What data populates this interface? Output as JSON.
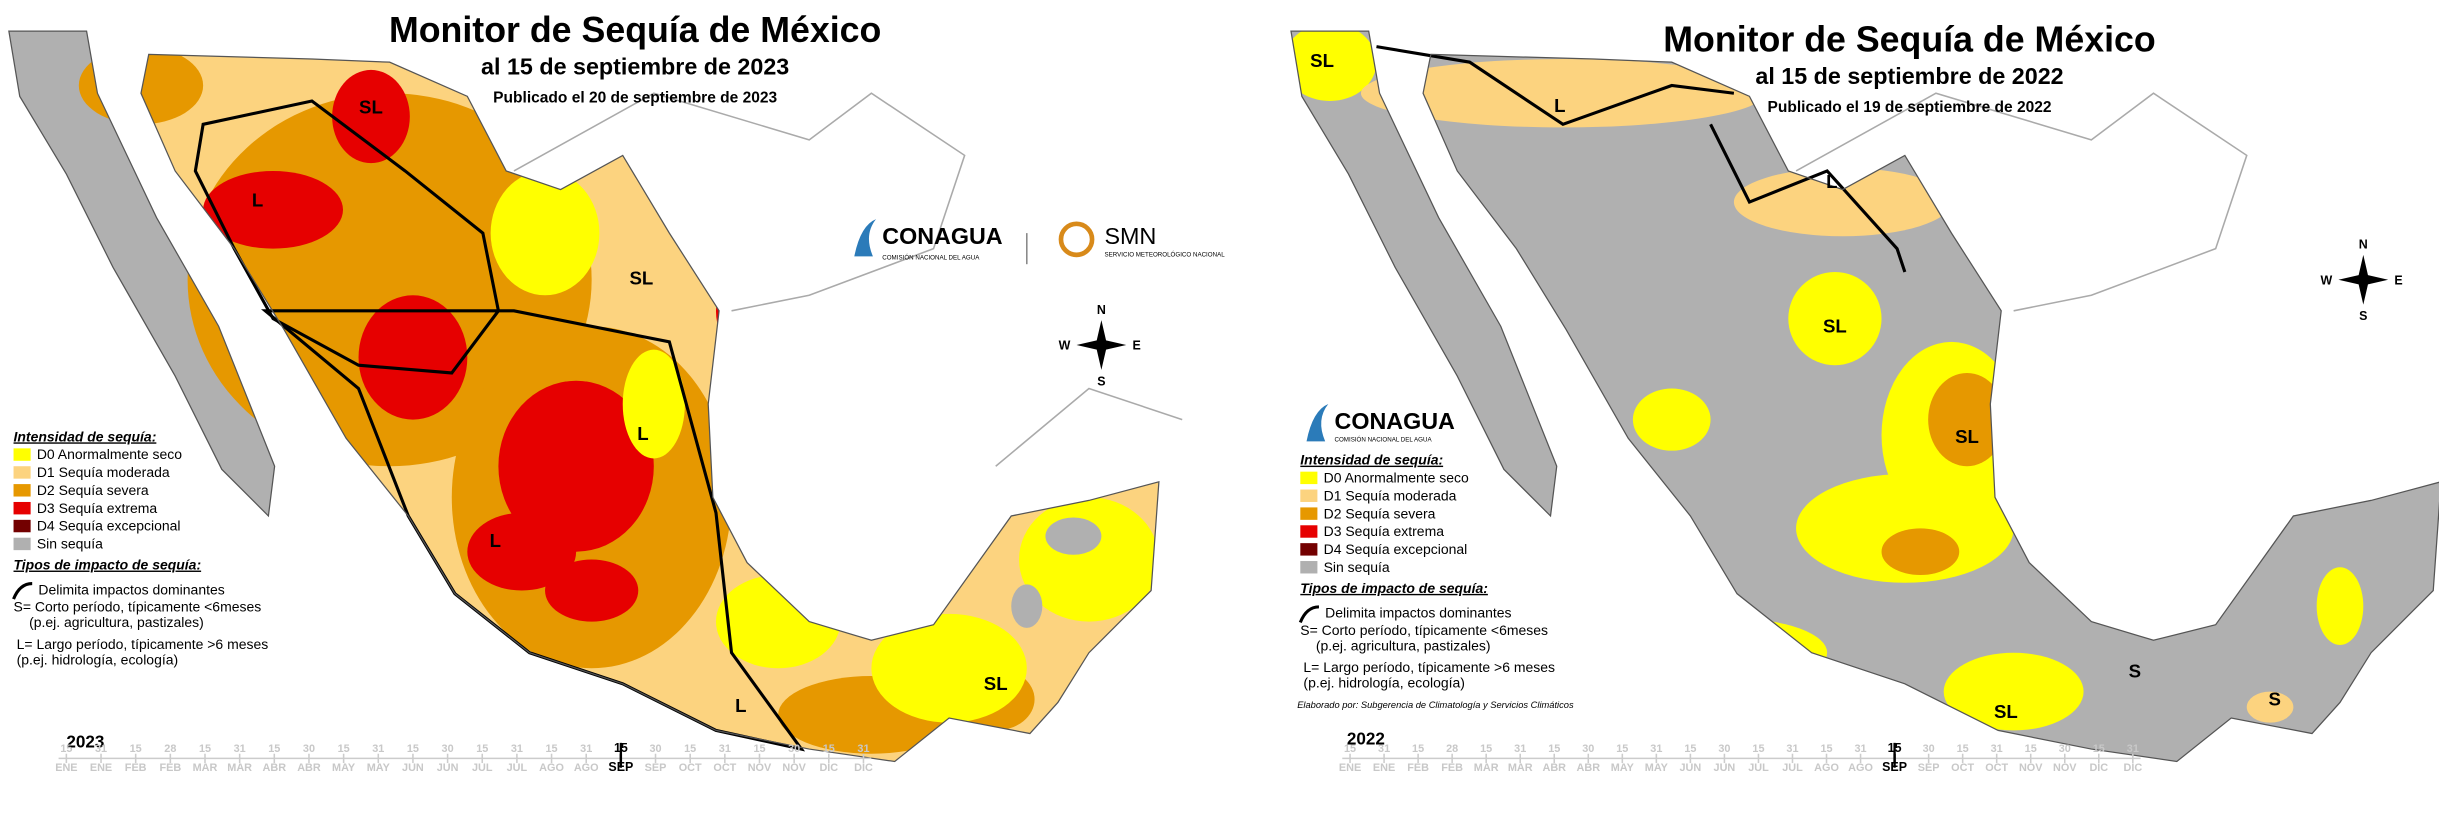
{
  "panels": [
    {
      "title": "Monitor de Sequía de México",
      "subtitle": "al 15 de septiembre de 2023",
      "published": "Publicado el 20 de septiembre de 2023",
      "logos": [
        "CONAGUA",
        "COMISIÓN NACIONAL DEL AGUA",
        "SMN",
        "SERVICIO METEOROLÓGICO NACIONAL"
      ],
      "compass": [
        "N",
        "E",
        "S",
        "W"
      ],
      "legend": {
        "intensity_title": "Intensidad de sequía:",
        "items": [
          {
            "label": "D0 Anormalmente seco",
            "color": "#ffff00"
          },
          {
            "label": "D1 Sequía moderada",
            "color": "#fcd37f"
          },
          {
            "label": "D2 Sequía severa",
            "color": "#e69800"
          },
          {
            "label": "D3 Sequía extrema",
            "color": "#e60000"
          },
          {
            "label": "D4 Sequía excepcional",
            "color": "#730000"
          },
          {
            "label": "Sin sequía",
            "color": "#b0b0b0"
          }
        ],
        "impact_title": "Tipos de impacto de sequía:",
        "impact_items": [
          "Delimita impactos dominantes",
          "S= Corto período, típicamente <6meses",
          "(p.ej. agricultura, pastizales)",
          "L= Largo período, típicamente >6 meses",
          "(p.ej. hidrología, ecología)"
        ]
      },
      "map_labels": [
        "SL",
        "L",
        "SL",
        "L",
        "L",
        "L",
        "SL"
      ],
      "year": "2023",
      "timeline": [
        {
          "day": "15",
          "month": "ENE"
        },
        {
          "day": "31",
          "month": "ENE"
        },
        {
          "day": "15",
          "month": "FEB"
        },
        {
          "day": "28",
          "month": "FEB"
        },
        {
          "day": "15",
          "month": "MAR"
        },
        {
          "day": "31",
          "month": "MAR"
        },
        {
          "day": "15",
          "month": "ABR"
        },
        {
          "day": "30",
          "month": "ABR"
        },
        {
          "day": "15",
          "month": "MAY"
        },
        {
          "day": "31",
          "month": "MAY"
        },
        {
          "day": "15",
          "month": "JUN"
        },
        {
          "day": "30",
          "month": "JUN"
        },
        {
          "day": "15",
          "month": "JUL"
        },
        {
          "day": "31",
          "month": "JUL"
        },
        {
          "day": "15",
          "month": "AGO"
        },
        {
          "day": "31",
          "month": "AGO"
        },
        {
          "day": "15",
          "month": "SEP",
          "current": true
        },
        {
          "day": "30",
          "month": "SEP"
        },
        {
          "day": "15",
          "month": "OCT"
        },
        {
          "day": "31",
          "month": "OCT"
        },
        {
          "day": "15",
          "month": "NOV"
        },
        {
          "day": "30",
          "month": "NOV"
        },
        {
          "day": "15",
          "month": "DIC"
        },
        {
          "day": "31",
          "month": "DIC"
        }
      ]
    },
    {
      "title": "Monitor de Sequía de México",
      "subtitle": "al 15 de septiembre de 2022",
      "published": "Publicado el 19 de septiembre de 2022",
      "logos": [
        "CONAGUA",
        "COMISIÓN NACIONAL DEL AGUA"
      ],
      "compass": [
        "N",
        "E",
        "S",
        "W"
      ],
      "legend": {
        "intensity_title": "Intensidad de sequía:",
        "items": [
          {
            "label": "D0 Anormalmente seco",
            "color": "#ffff00"
          },
          {
            "label": "D1 Sequía moderada",
            "color": "#fcd37f"
          },
          {
            "label": "D2 Sequía severa",
            "color": "#e69800"
          },
          {
            "label": "D3 Sequía extrema",
            "color": "#e60000"
          },
          {
            "label": "D4 Sequía excepcional",
            "color": "#730000"
          },
          {
            "label": "Sin sequía",
            "color": "#b0b0b0"
          }
        ],
        "impact_title": "Tipos de impacto de sequía:",
        "impact_items": [
          "Delimita impactos dominantes",
          "S= Corto período, típicamente <6meses",
          "(p.ej. agricultura, pastizales)",
          "L= Largo período, típicamente >6 meses",
          "(p.ej. hidrología, ecología)"
        ]
      },
      "credit": "Elaborado por: Subgerencia de Climatología y Servicios Climáticos",
      "map_labels": [
        "SL",
        "L",
        "L",
        "SL",
        "SL",
        "S",
        "SL",
        "S"
      ],
      "year": "2022",
      "timeline": [
        {
          "day": "15",
          "month": "ENE"
        },
        {
          "day": "31",
          "month": "ENE"
        },
        {
          "day": "15",
          "month": "FEB"
        },
        {
          "day": "28",
          "month": "FEB"
        },
        {
          "day": "15",
          "month": "MAR"
        },
        {
          "day": "31",
          "month": "MAR"
        },
        {
          "day": "15",
          "month": "ABR"
        },
        {
          "day": "30",
          "month": "ABR"
        },
        {
          "day": "15",
          "month": "MAY"
        },
        {
          "day": "31",
          "month": "MAY"
        },
        {
          "day": "15",
          "month": "JUN"
        },
        {
          "day": "30",
          "month": "JUN"
        },
        {
          "day": "15",
          "month": "JUL"
        },
        {
          "day": "31",
          "month": "JUL"
        },
        {
          "day": "15",
          "month": "AGO"
        },
        {
          "day": "31",
          "month": "AGO"
        },
        {
          "day": "15",
          "month": "SEP",
          "current": true
        },
        {
          "day": "30",
          "month": "SEP"
        },
        {
          "day": "15",
          "month": "OCT"
        },
        {
          "day": "31",
          "month": "OCT"
        },
        {
          "day": "15",
          "month": "NOV"
        },
        {
          "day": "30",
          "month": "NOV"
        },
        {
          "day": "15",
          "month": "DIC"
        },
        {
          "day": "31",
          "month": "DIC"
        }
      ]
    }
  ]
}
